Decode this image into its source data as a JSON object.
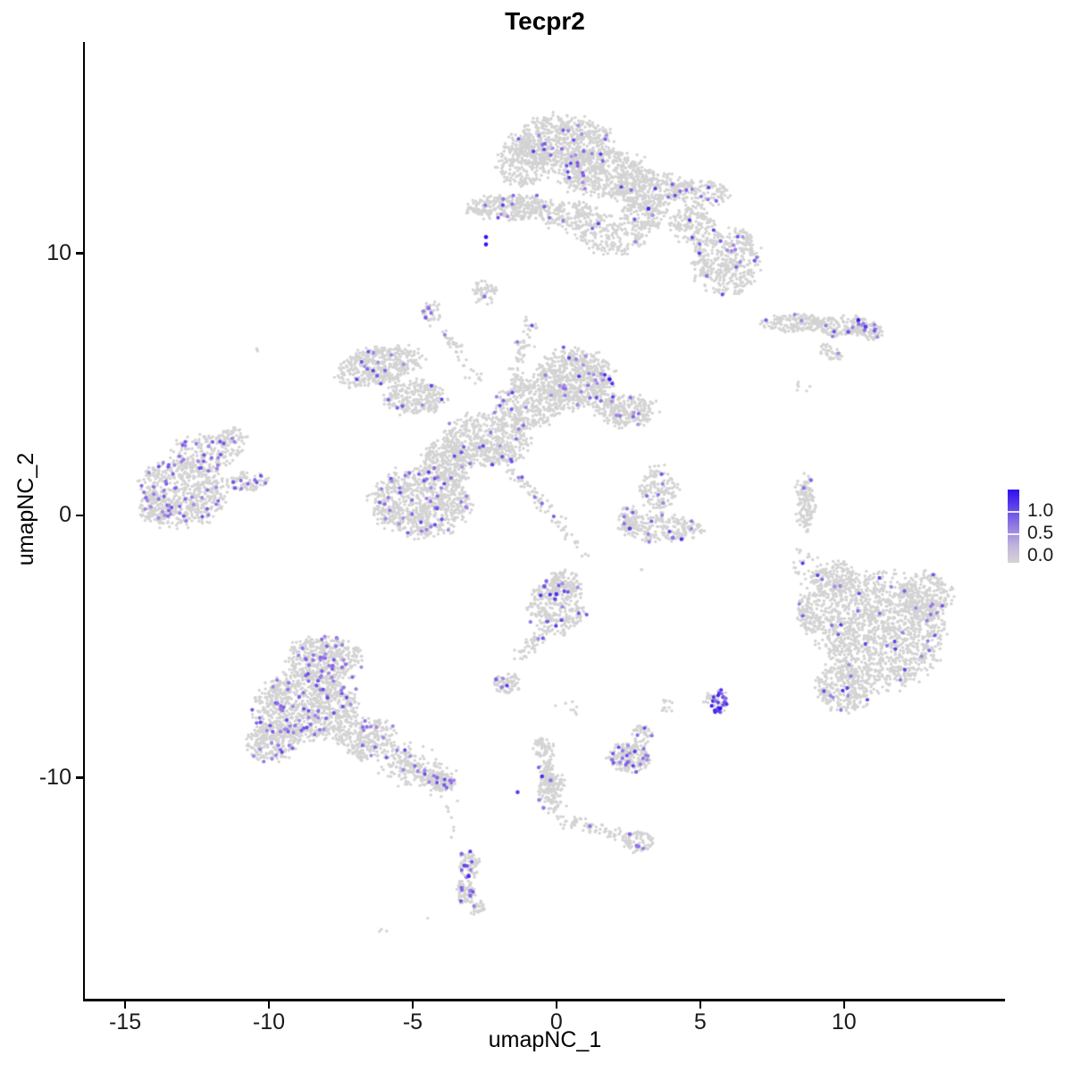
{
  "title": "Tecpr2",
  "axes": {
    "x_label": "umapNC_1",
    "y_label": "umapNC_2",
    "x_tick_labels": [
      "-15",
      "-10",
      "-5",
      "0",
      "5",
      "10"
    ],
    "y_tick_labels": [
      "10",
      "0",
      "-10"
    ]
  },
  "legend": {
    "tick_labels": [
      "1.0",
      "0.5",
      "0.0"
    ]
  },
  "colors": {
    "background": "#ffffff",
    "axis": "#000000",
    "grey_point": "#d3d3d3"
  },
  "chart_data": {
    "type": "scatter",
    "title": "Tecpr2",
    "xlabel": "umapNC_1",
    "ylabel": "umapNC_2",
    "xlim": [
      -16.4,
      15.6
    ],
    "ylim": [
      -18.43,
      18.06
    ],
    "x_tick_values": [
      -15,
      -10,
      -5,
      0,
      5,
      10
    ],
    "y_tick_values": [
      10,
      0,
      -10
    ],
    "grid": false,
    "legend_position": "right",
    "colorbar": {
      "ticks": [
        1.0,
        0.5,
        0.0
      ],
      "low_color": "#d3d3d3",
      "mid_color": "#9b7ae8",
      "high_color": "#3010f0"
    },
    "point_radius_px": 1.7,
    "expressed_point_radius_px": 2.1,
    "clusters": [
      {
        "name": "top-cluster",
        "frac": 0.025,
        "vmin": 0.35,
        "vmax": 0.8,
        "blobs": [
          {
            "cx": 0.2,
            "cy": 14.2,
            "rx": 1.75,
            "ry": 1.1,
            "n": 650
          },
          {
            "cx": 1.6,
            "cy": 13.1,
            "rx": 1.6,
            "ry": 1.0,
            "n": 500
          },
          {
            "cx": -1.1,
            "cy": 13.5,
            "rx": 1.0,
            "ry": 1.0,
            "n": 260
          },
          {
            "cx": 3.2,
            "cy": 12.4,
            "rx": 1.3,
            "ry": 0.8,
            "n": 300
          },
          {
            "cx": 5.0,
            "cy": 12.3,
            "rx": 1.05,
            "ry": 0.55,
            "n": 150
          },
          {
            "cx": -1.6,
            "cy": 11.75,
            "rx": 1.55,
            "ry": 0.5,
            "n": 330
          },
          {
            "cx": 0.5,
            "cy": 11.4,
            "rx": 1.2,
            "ry": 0.6,
            "n": 170
          },
          {
            "cx": 1.9,
            "cy": 10.7,
            "rx": 1.3,
            "ry": 0.85,
            "n": 190
          },
          {
            "cx": 3.1,
            "cy": 11.5,
            "rx": 0.85,
            "ry": 0.7,
            "n": 140
          },
          {
            "cx": 4.75,
            "cy": 11.1,
            "rx": 0.8,
            "ry": 0.8,
            "n": 150
          },
          {
            "cx": 5.9,
            "cy": 9.7,
            "rx": 1.25,
            "ry": 1.35,
            "n": 420
          }
        ]
      },
      {
        "name": "below-band-blob",
        "frac": 0,
        "vmin": 0.4,
        "vmax": 0.6,
        "blobs": [
          {
            "cx": -2.55,
            "cy": 8.55,
            "rx": 0.45,
            "ry": 0.52,
            "n": 55
          }
        ]
      },
      {
        "name": "right-band",
        "frac": 0.05,
        "vmin": 0.4,
        "vmax": 0.75,
        "blobs": [
          {
            "cx": 8.3,
            "cy": 7.35,
            "rx": 1.15,
            "ry": 0.36,
            "n": 160
          },
          {
            "cx": 9.9,
            "cy": 7.25,
            "rx": 1.15,
            "ry": 0.42,
            "n": 160
          },
          {
            "cx": 10.9,
            "cy": 7.1,
            "rx": 0.5,
            "ry": 0.45,
            "n": 70
          },
          {
            "cx": 9.55,
            "cy": 6.2,
            "rx": 0.5,
            "ry": 0.26,
            "rot": -38,
            "n": 42
          },
          {
            "cx": 8.6,
            "cy": 4.9,
            "rx": 0.3,
            "ry": 0.35,
            "n": 6
          }
        ]
      },
      {
        "name": "central-arms",
        "frac": 0.03,
        "vmin": 0.35,
        "vmax": 0.8,
        "blobs": [
          {
            "cx": 2.4,
            "cy": 4.0,
            "rx": 1.15,
            "ry": 0.65,
            "n": 250
          },
          {
            "cx": -0.9,
            "cy": 4.2,
            "rx": 1.2,
            "ry": 0.9,
            "n": 300
          },
          {
            "cx": -2.4,
            "cy": 2.9,
            "rx": 1.55,
            "ry": 1.05,
            "n": 500
          },
          {
            "cx": -6.2,
            "cy": 5.7,
            "rx": 1.55,
            "ry": 0.75,
            "rot": 12,
            "n": 420
          },
          {
            "cx": -4.9,
            "cy": 4.5,
            "rx": 1.1,
            "ry": 0.7,
            "n": 260
          },
          {
            "cx": -3.8,
            "cy": 2.0,
            "rx": 0.95,
            "ry": 0.9,
            "n": 260
          },
          {
            "line": [
              -1.5,
              4.6,
              -0.95,
              7.35
            ],
            "w": 0.16,
            "n": 85
          },
          {
            "line": [
              -1.9,
              2.2,
              1.1,
              -1.55
            ],
            "w": 0.12,
            "n": 85
          },
          {
            "line": [
              -3.95,
              7.1,
              -2.7,
              5.1
            ],
            "w": 0.12,
            "n": 45
          }
        ]
      },
      {
        "name": "central-upper-lobe",
        "frac": 0.05,
        "vmin": 0.35,
        "vmax": 0.85,
        "blobs": [
          {
            "cx": 0.65,
            "cy": 5.2,
            "rx": 1.45,
            "ry": 1.15,
            "n": 650
          }
        ]
      },
      {
        "name": "central-lower-blob",
        "frac": 0.055,
        "vmin": 0.35,
        "vmax": 0.75,
        "blobs": [
          {
            "cx": -4.7,
            "cy": 0.55,
            "rx": 1.8,
            "ry": 1.35,
            "n": 800
          }
        ]
      },
      {
        "name": "left-cluster",
        "frac": 0.075,
        "vmin": 0.4,
        "vmax": 0.7,
        "blobs": [
          {
            "cx": -13.0,
            "cy": 0.9,
            "rx": 1.55,
            "ry": 1.35,
            "n": 560
          },
          {
            "cx": -12.2,
            "cy": 2.4,
            "rx": 1.2,
            "ry": 0.7,
            "n": 180
          },
          {
            "cx": -11.3,
            "cy": 2.95,
            "rx": 0.55,
            "ry": 0.4,
            "n": 60
          },
          {
            "cx": -10.8,
            "cy": 1.3,
            "rx": 0.85,
            "ry": 0.4,
            "n": 85
          },
          {
            "cx": -13.95,
            "cy": 0.3,
            "rx": 0.55,
            "ry": 0.75,
            "n": 120
          }
        ]
      },
      {
        "name": "mid-boomerang",
        "frac": 0.03,
        "vmin": 0.4,
        "vmax": 0.75,
        "blobs": [
          {
            "cx": 3.55,
            "cy": 1.0,
            "rx": 0.7,
            "ry": 0.95,
            "n": 150
          },
          {
            "cx": 3.6,
            "cy": -0.5,
            "rx": 1.45,
            "ry": 0.52,
            "n": 230
          },
          {
            "cx": 2.5,
            "cy": -0.1,
            "rx": 0.38,
            "ry": 0.5,
            "n": 55
          },
          {
            "cx": 3.0,
            "cy": -2.1,
            "rx": 0.08,
            "ry": 0.08,
            "n": 2
          }
        ]
      },
      {
        "name": "right-thin-strand",
        "frac": 0,
        "vmin": 0.4,
        "vmax": 0.6,
        "blobs": [
          {
            "line": [
              8.55,
              1.4,
              8.78,
              -0.65
            ],
            "w": 0.17,
            "n": 85
          },
          {
            "cx": 8.7,
            "cy": 0.35,
            "rx": 0.3,
            "ry": 0.75,
            "n": 45
          },
          {
            "cx": 8.78,
            "cy": -1.55,
            "rx": 0.1,
            "ry": 0.1,
            "n": 3
          },
          {
            "cx": 9.0,
            "cy": -3.3,
            "rx": 0.08,
            "ry": 0.08,
            "n": 2
          }
        ]
      },
      {
        "name": "center-bottom-cluster",
        "frac": 0.045,
        "vmin": 0.4,
        "vmax": 0.85,
        "blobs": [
          {
            "cx": 0.0,
            "cy": -3.5,
            "rx": 1.05,
            "ry": 1.05,
            "n": 310
          },
          {
            "cx": 0.3,
            "cy": -2.55,
            "rx": 0.6,
            "ry": 0.5,
            "n": 100
          },
          {
            "line": [
              -0.5,
              -4.5,
              -1.25,
              -5.35
            ],
            "w": 0.15,
            "n": 50
          },
          {
            "cx": -1.75,
            "cy": -6.4,
            "rx": 0.5,
            "ry": 0.42,
            "n": 70
          },
          {
            "cx": 0.3,
            "cy": -7.4,
            "rx": 0.55,
            "ry": 0.45,
            "n": 8
          }
        ]
      },
      {
        "name": "right-big-cluster",
        "frac": 0.03,
        "vmin": 0.4,
        "vmax": 0.85,
        "blobs": [
          {
            "cx": 11.3,
            "cy": -4.4,
            "rx": 2.25,
            "ry": 2.25,
            "n": 1350
          },
          {
            "cx": 10.0,
            "cy": -6.6,
            "rx": 1.05,
            "ry": 0.95,
            "n": 260
          },
          {
            "cx": 12.85,
            "cy": -3.0,
            "rx": 0.95,
            "ry": 0.95,
            "n": 210
          },
          {
            "cx": 9.7,
            "cy": -2.5,
            "rx": 0.85,
            "ry": 0.8,
            "n": 200
          },
          {
            "cx": 8.85,
            "cy": -3.7,
            "rx": 0.5,
            "ry": 0.9,
            "n": 120
          },
          {
            "cx": 8.65,
            "cy": -1.8,
            "rx": 0.6,
            "ry": 0.9,
            "n": 22
          }
        ]
      },
      {
        "name": "bottom-left-cluster",
        "frac": 0.065,
        "vmin": 0.4,
        "vmax": 0.75,
        "blobs": [
          {
            "cx": -8.1,
            "cy": -5.5,
            "rx": 1.35,
            "ry": 0.9,
            "n": 420
          },
          {
            "cx": -8.7,
            "cy": -7.3,
            "rx": 1.85,
            "ry": 1.35,
            "n": 880
          },
          {
            "cx": -9.9,
            "cy": -8.6,
            "rx": 0.9,
            "ry": 0.85,
            "n": 230
          },
          {
            "cx": -6.6,
            "cy": -8.5,
            "rx": 1.05,
            "ry": 0.85,
            "n": 260
          },
          {
            "line": [
              -5.8,
              -9.2,
              -4.05,
              -10.1
            ],
            "w": 0.35,
            "n": 230
          },
          {
            "cx": -3.95,
            "cy": -10.15,
            "rx": 0.48,
            "ry": 0.42,
            "n": 85
          }
        ]
      },
      {
        "name": "below-tail-trail",
        "frac": 0,
        "vmin": 0.4,
        "vmax": 0.6,
        "blobs": [
          {
            "line": [
              -3.8,
              -10.9,
              -3.45,
              -12.4
            ],
            "w": 0.07,
            "n": 7
          }
        ]
      },
      {
        "name": "bottom-small-cluster",
        "frac": 0.08,
        "vmin": 0.45,
        "vmax": 0.8,
        "blobs": [
          {
            "cx": -3.05,
            "cy": -13.35,
            "rx": 0.4,
            "ry": 0.55,
            "n": 65
          },
          {
            "cx": -3.15,
            "cy": -14.35,
            "rx": 0.36,
            "ry": 0.55,
            "n": 70
          },
          {
            "cx": -2.8,
            "cy": -14.95,
            "rx": 0.32,
            "ry": 0.28,
            "n": 30
          },
          {
            "cx": -6.0,
            "cy": -15.85,
            "rx": 0.18,
            "ry": 0.1,
            "n": 3
          },
          {
            "cx": -4.5,
            "cy": -15.4,
            "rx": 0.05,
            "ry": 0.05,
            "n": 1
          }
        ]
      },
      {
        "name": "y-trail-cluster",
        "frac": 0.02,
        "vmin": 0.4,
        "vmax": 0.7,
        "blobs": [
          {
            "cx": -0.45,
            "cy": -8.85,
            "rx": 0.38,
            "ry": 0.42,
            "n": 55
          },
          {
            "line": [
              -0.35,
              -9.3,
              -0.05,
              -11.3
            ],
            "w": 0.17,
            "n": 110
          },
          {
            "cx": -0.2,
            "cy": -10.3,
            "rx": 0.48,
            "ry": 0.58,
            "n": 85
          },
          {
            "line": [
              0.2,
              -11.6,
              2.5,
              -12.3
            ],
            "w": 0.14,
            "n": 70
          },
          {
            "cx": 2.85,
            "cy": -12.45,
            "rx": 0.55,
            "ry": 0.42,
            "n": 75
          }
        ]
      },
      {
        "name": "dense-purple-small",
        "frac": 0.12,
        "vmin": 0.4,
        "vmax": 0.8,
        "blobs": [
          {
            "cx": 2.55,
            "cy": -9.2,
            "rx": 0.78,
            "ry": 0.58,
            "n": 210
          },
          {
            "cx": 2.95,
            "cy": -8.35,
            "rx": 0.38,
            "ry": 0.38,
            "n": 45
          }
        ]
      },
      {
        "name": "bright-purple-blob",
        "frac": 0.55,
        "vmin": 0.5,
        "vmax": 0.95,
        "blobs": [
          {
            "cx": 5.65,
            "cy": -7.1,
            "rx": 0.3,
            "ry": 0.48,
            "n": 42
          }
        ]
      },
      {
        "name": "bright-blob-neighbours",
        "frac": 0,
        "vmin": 0.4,
        "vmax": 0.6,
        "blobs": [
          {
            "cx": 5.25,
            "cy": -6.95,
            "rx": 0.28,
            "ry": 0.22,
            "n": 15
          },
          {
            "cx": 3.85,
            "cy": -7.15,
            "rx": 0.28,
            "ry": 0.38,
            "n": 12
          }
        ]
      },
      {
        "name": "misc-specks",
        "frac": 0,
        "vmin": 0.4,
        "vmax": 0.6,
        "blobs": [
          {
            "cx": -10.4,
            "cy": 6.35,
            "rx": 0.14,
            "ry": 0.09,
            "n": 3
          }
        ]
      },
      {
        "name": "small-upper-blob",
        "frac": 0.08,
        "vmin": 0.45,
        "vmax": 0.7,
        "blobs": [
          {
            "cx": -4.35,
            "cy": 7.7,
            "rx": 0.38,
            "ry": 0.45,
            "n": 42
          }
        ]
      }
    ],
    "highlights": [
      [
        -2.45,
        10.62,
        1.0
      ],
      [
        -2.45,
        10.34,
        1.0
      ],
      [
        1.85,
        5.2,
        1.0
      ],
      [
        3.2,
        11.7,
        0.9
      ],
      [
        -2.5,
        8.35,
        0.55
      ],
      [
        10.5,
        7.45,
        0.95
      ],
      [
        10.75,
        7.2,
        0.8
      ],
      [
        10.15,
        7.0,
        0.7
      ],
      [
        2.55,
        -0.5,
        0.8
      ],
      [
        4.35,
        -0.9,
        0.85
      ],
      [
        4.05,
        -0.85,
        0.55
      ],
      [
        8.85,
        1.35,
        0.6
      ],
      [
        8.6,
        1.05,
        0.55
      ],
      [
        -2.1,
        -6.25,
        0.6
      ],
      [
        -1.9,
        -6.55,
        0.5
      ],
      [
        0.0,
        -3.0,
        0.85
      ],
      [
        -0.35,
        -2.5,
        0.6
      ],
      [
        -4.15,
        -10.0,
        0.6
      ],
      [
        -3.9,
        -10.28,
        0.65
      ],
      [
        -3.7,
        -10.1,
        0.55
      ],
      [
        -3.3,
        -12.9,
        0.6
      ],
      [
        -3.2,
        -13.35,
        0.75
      ],
      [
        -3.05,
        -13.75,
        0.9
      ],
      [
        -3.3,
        -14.2,
        0.6
      ],
      [
        -3.0,
        -14.5,
        0.6
      ],
      [
        -1.35,
        -10.55,
        0.8
      ],
      [
        -0.5,
        -9.95,
        0.85
      ],
      [
        -0.2,
        -10.1,
        0.55
      ],
      [
        -0.6,
        -10.85,
        0.5
      ],
      [
        -0.45,
        -11.15,
        0.5
      ],
      [
        2.55,
        -12.15,
        0.6
      ],
      [
        2.8,
        -12.6,
        0.55
      ],
      [
        5.7,
        -7.35,
        1.0
      ],
      [
        -4.55,
        7.55,
        0.65
      ],
      [
        -4.45,
        7.92,
        0.55
      ]
    ]
  }
}
